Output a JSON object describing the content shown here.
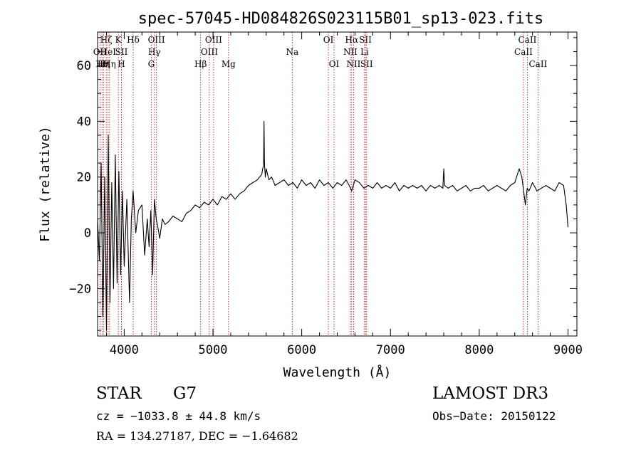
{
  "chart_data": {
    "type": "line",
    "title": "spec-57045-HD084826S023115B01_sp13-023.fits",
    "xlabel": "Wavelength (Å)",
    "ylabel": "Flux (relative)",
    "xlim": [
      3700,
      9100
    ],
    "ylim": [
      -37,
      72
    ],
    "xticks": [
      4000,
      5000,
      6000,
      7000,
      8000,
      9000
    ],
    "yticks": [
      -20,
      0,
      20,
      40,
      60
    ],
    "xtick_labels": [
      "4000",
      "5000",
      "6000",
      "7000",
      "8000",
      "9000"
    ],
    "ytick_labels": [
      "−20",
      "0",
      "20",
      "40",
      "60"
    ],
    "series": [
      {
        "name": "flux",
        "x": [
          3700,
          3720,
          3740,
          3760,
          3780,
          3800,
          3820,
          3840,
          3860,
          3880,
          3900,
          3920,
          3940,
          3960,
          3980,
          4000,
          4030,
          4060,
          4080,
          4100,
          4130,
          4160,
          4200,
          4230,
          4260,
          4280,
          4300,
          4320,
          4340,
          4360,
          4380,
          4400,
          4430,
          4460,
          4500,
          4550,
          4600,
          4650,
          4700,
          4750,
          4800,
          4850,
          4900,
          4950,
          5000,
          5050,
          5100,
          5150,
          5200,
          5250,
          5300,
          5350,
          5400,
          5450,
          5500,
          5550,
          5560,
          5570,
          5575,
          5580,
          5590,
          5600,
          5630,
          5660,
          5700,
          5750,
          5800,
          5850,
          5900,
          5950,
          6000,
          6050,
          6100,
          6150,
          6200,
          6250,
          6300,
          6350,
          6400,
          6450,
          6500,
          6550,
          6563,
          6600,
          6650,
          6700,
          6750,
          6800,
          6850,
          6900,
          6950,
          7000,
          7050,
          7100,
          7150,
          7200,
          7250,
          7300,
          7350,
          7400,
          7450,
          7500,
          7550,
          7590,
          7600,
          7610,
          7650,
          7700,
          7750,
          7800,
          7850,
          7900,
          7950,
          8000,
          8050,
          8100,
          8150,
          8200,
          8250,
          8300,
          8350,
          8400,
          8450,
          8480,
          8500,
          8520,
          8540,
          8560,
          8600,
          8650,
          8700,
          8750,
          8800,
          8850,
          8900,
          8950,
          8980,
          9000
        ],
        "y": [
          5,
          -10,
          25,
          -30,
          20,
          -35,
          35,
          -25,
          18,
          -20,
          28,
          -18,
          22,
          -15,
          15,
          -12,
          12,
          -25,
          5,
          15,
          0,
          8,
          10,
          -8,
          5,
          -5,
          8,
          -15,
          12,
          5,
          2,
          -2,
          5,
          3,
          4,
          6,
          5,
          4,
          7,
          8,
          10,
          9,
          11,
          10,
          12,
          10,
          13,
          12,
          14,
          12,
          14,
          15,
          17,
          18,
          19,
          21,
          23,
          24,
          40,
          25,
          20,
          23,
          19,
          20,
          17,
          18,
          19,
          17,
          18,
          16,
          19,
          17,
          18,
          16,
          19,
          17,
          18,
          16,
          18,
          17,
          19,
          16,
          15,
          19,
          18,
          16,
          17,
          16,
          18,
          16,
          17,
          16,
          18,
          15,
          17,
          16,
          17,
          16,
          17,
          15,
          17,
          16,
          17,
          16,
          23,
          17,
          16,
          17,
          15,
          16,
          17,
          15,
          16,
          16,
          17,
          15,
          16,
          17,
          16,
          15,
          17,
          18,
          23,
          20,
          15,
          10,
          16,
          15,
          18,
          15,
          16,
          17,
          16,
          15,
          18,
          17,
          10,
          2
        ]
      }
    ],
    "spectral_lines": [
      {
        "name": "OII",
        "x": 3727,
        "row": 2
      },
      {
        "name": "Hθ",
        "x": 3750,
        "row": 3
      },
      {
        "name": "Hη",
        "x": 3770,
        "row": 3
      },
      {
        "name": "Hζ",
        "x": 3798,
        "row": 1
      },
      {
        "name": "HeI",
        "x": 3819,
        "row": 2
      },
      {
        "name": "Hη",
        "x": 3835,
        "row": 3
      },
      {
        "name": "K",
        "x": 3934,
        "row": 1
      },
      {
        "name": "SII",
        "x": 3969,
        "row": 2
      },
      {
        "name": "H",
        "x": 3969,
        "row": 3
      },
      {
        "name": "Hδ",
        "x": 4101,
        "row": 1
      },
      {
        "name": "OIII",
        "x": 4363,
        "row": 1
      },
      {
        "name": "Hγ",
        "x": 4340,
        "row": 2
      },
      {
        "name": "G",
        "x": 4305,
        "row": 3
      },
      {
        "name": "Hβ",
        "x": 4861,
        "row": 3
      },
      {
        "name": "OIII",
        "x": 5007,
        "row": 1
      },
      {
        "name": "OIII",
        "x": 4959,
        "row": 2
      },
      {
        "name": "Mg",
        "x": 5175,
        "row": 3
      },
      {
        "name": "Na",
        "x": 5893,
        "row": 2
      },
      {
        "name": "OI",
        "x": 6300,
        "row": 1
      },
      {
        "name": "OI",
        "x": 6364,
        "row": 3
      },
      {
        "name": "Hα",
        "x": 6563,
        "row": 1
      },
      {
        "name": "NII",
        "x": 6548,
        "row": 2
      },
      {
        "name": "NII",
        "x": 6584,
        "row": 3
      },
      {
        "name": "SII",
        "x": 6717,
        "row": 1
      },
      {
        "name": "Li",
        "x": 6708,
        "row": 2
      },
      {
        "name": "SII",
        "x": 6731,
        "row": 3
      },
      {
        "name": "CaII",
        "x": 8542,
        "row": 1
      },
      {
        "name": "CaII",
        "x": 8498,
        "row": 2
      },
      {
        "name": "CaII",
        "x": 8662,
        "row": 3
      }
    ]
  },
  "info": {
    "object_type": "STAR",
    "subclass": "G7",
    "survey": "LAMOST DR3",
    "redshift": "cz = −1033.8 ± 44.8 km/s",
    "obs_date": "Obs−Date: 20150122",
    "coords": "RA = 134.27187, DEC =  −1.64682"
  }
}
